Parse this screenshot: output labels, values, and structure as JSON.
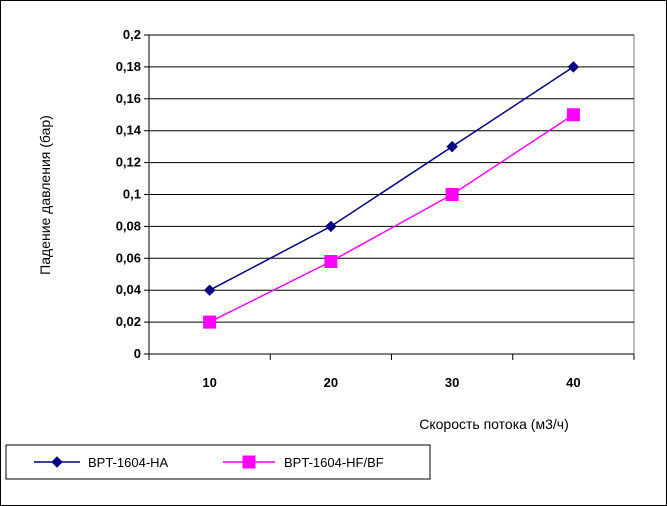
{
  "chart_data": {
    "type": "line",
    "title": "",
    "xlabel": "Скорость потока (м3/ч)",
    "ylabel": "Падение давления (бар)",
    "categories": [
      "10",
      "20",
      "30",
      "40"
    ],
    "ylim": [
      0,
      0.2
    ],
    "yticks": [
      "0",
      "0,02",
      "0,04",
      "0,06",
      "0,08",
      "0,1",
      "0,12",
      "0,14",
      "0,16",
      "0,18",
      "0,2"
    ],
    "grid": "horizontal",
    "legend_position": "bottom-left",
    "series": [
      {
        "name": "BPT-1604-HA",
        "values": [
          0.04,
          0.08,
          0.13,
          0.18
        ],
        "color": "#000080",
        "marker": "diamond"
      },
      {
        "name": "BPT-1604-HF/BF",
        "values": [
          0.02,
          0.058,
          0.1,
          0.15
        ],
        "color": "#FF00FF",
        "marker": "square"
      }
    ]
  }
}
